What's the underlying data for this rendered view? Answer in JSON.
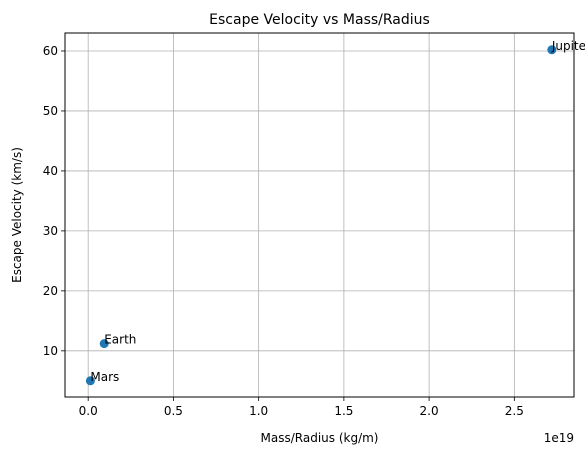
{
  "chart_data": {
    "type": "scatter",
    "title": "Escape Velocity vs Mass/Radius",
    "xlabel": "Mass/Radius (kg/m)",
    "ylabel": "Escape Velocity (km/s)",
    "x_offset_text": "1e19",
    "x_scale": 1e+19,
    "xlim": [
      -0.136,
      2.85
    ],
    "ylim": [
      2.3,
      63.0
    ],
    "x_ticks": [
      0.0,
      0.5,
      1.0,
      1.5,
      2.0,
      2.5
    ],
    "x_tick_labels": [
      "0.0",
      "0.5",
      "1.0",
      "1.5",
      "2.0",
      "2.5"
    ],
    "y_ticks": [
      10,
      20,
      30,
      40,
      50,
      60
    ],
    "y_tick_labels": [
      "10",
      "20",
      "30",
      "40",
      "50",
      "60"
    ],
    "grid": true,
    "marker_color": "#1f77b4",
    "points": [
      {
        "label": "Mars",
        "x": 0.013,
        "y": 5.0
      },
      {
        "label": "Earth",
        "x": 0.094,
        "y": 11.2
      },
      {
        "label": "Jupiter",
        "x": 2.72,
        "y": 60.2
      }
    ]
  }
}
